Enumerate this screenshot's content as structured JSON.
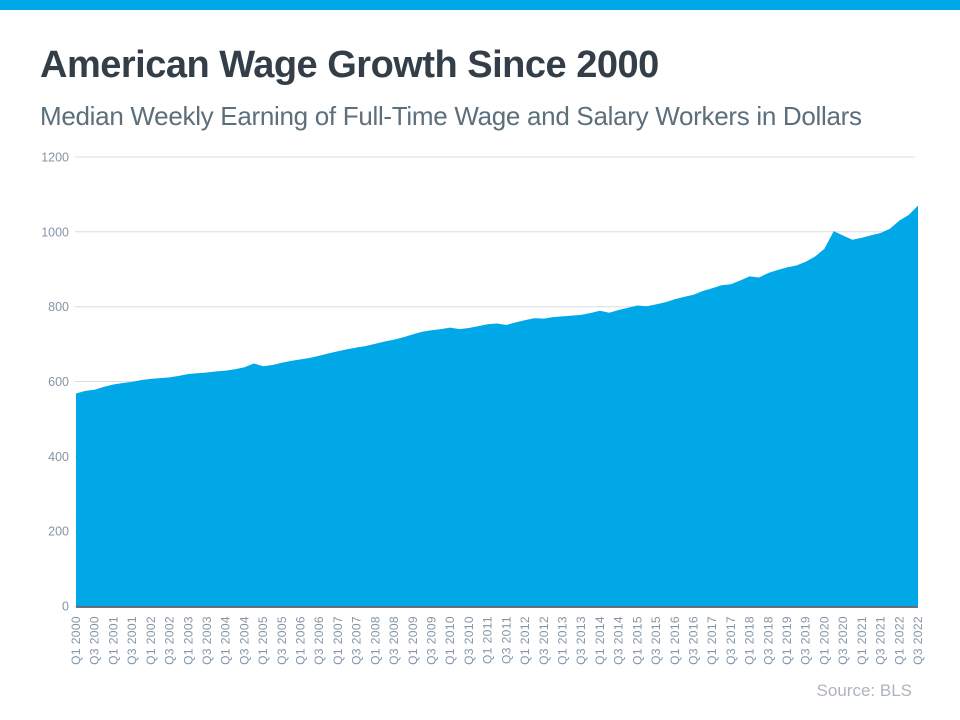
{
  "colors": {
    "accent": "#00A8E8",
    "title": "#333E48",
    "subtitle": "#5C6F7B",
    "grid": "#DADEE1",
    "axis": "#3A444E",
    "tick": "#8495A6",
    "source": "#AEB5BC"
  },
  "header": {
    "title": "American Wage Growth Since 2000",
    "subtitle": "Median Weekly Earning of Full-Time Wage and Salary Workers in Dollars"
  },
  "footer": {
    "source": "Source: BLS"
  },
  "chart_data": {
    "type": "area",
    "title": "American Wage Growth Since 2000",
    "series_name": "Median weekly earnings of full-time wage and salary workers ($)",
    "xlabel": "",
    "ylabel": "",
    "ylim": [
      0,
      1200
    ],
    "yticks": [
      0,
      200,
      400,
      600,
      800,
      1000,
      1200
    ],
    "grid": "horizontal",
    "legend": "none",
    "x_tick_every": 2,
    "categories": [
      "Q1 2000",
      "Q2 2000",
      "Q3 2000",
      "Q4 2000",
      "Q1 2001",
      "Q2 2001",
      "Q3 2001",
      "Q4 2001",
      "Q1 2002",
      "Q2 2002",
      "Q3 2002",
      "Q4 2002",
      "Q1 2003",
      "Q2 2003",
      "Q3 2003",
      "Q4 2003",
      "Q1 2004",
      "Q2 2004",
      "Q3 2004",
      "Q4 2004",
      "Q1 2005",
      "Q2 2005",
      "Q3 2005",
      "Q4 2005",
      "Q1 2006",
      "Q2 2006",
      "Q3 2006",
      "Q4 2006",
      "Q1 2007",
      "Q2 2007",
      "Q3 2007",
      "Q4 2007",
      "Q1 2008",
      "Q2 2008",
      "Q3 2008",
      "Q4 2008",
      "Q1 2009",
      "Q2 2009",
      "Q3 2009",
      "Q4 2009",
      "Q1 2010",
      "Q2 2010",
      "Q3 2010",
      "Q4 2010",
      "Q1 2011",
      "Q2 2011",
      "Q3 2011",
      "Q4 2011",
      "Q1 2012",
      "Q2 2012",
      "Q3 2012",
      "Q4 2012",
      "Q1 2013",
      "Q2 2013",
      "Q3 2013",
      "Q4 2013",
      "Q1 2014",
      "Q2 2014",
      "Q3 2014",
      "Q4 2014",
      "Q1 2015",
      "Q2 2015",
      "Q3 2015",
      "Q4 2015",
      "Q1 2016",
      "Q2 2016",
      "Q3 2016",
      "Q4 2016",
      "Q1 2017",
      "Q2 2017",
      "Q3 2017",
      "Q4 2017",
      "Q1 2018",
      "Q2 2018",
      "Q3 2018",
      "Q4 2018",
      "Q1 2019",
      "Q2 2019",
      "Q3 2019",
      "Q4 2019",
      "Q1 2020",
      "Q2 2020",
      "Q3 2020",
      "Q4 2020",
      "Q1 2021",
      "Q2 2021",
      "Q3 2021",
      "Q4 2021",
      "Q1 2022",
      "Q2 2022",
      "Q3 2022"
    ],
    "values": [
      568,
      575,
      578,
      586,
      592,
      596,
      599,
      604,
      607,
      609,
      611,
      615,
      620,
      622,
      624,
      627,
      629,
      633,
      638,
      648,
      641,
      644,
      650,
      655,
      659,
      663,
      669,
      675,
      681,
      686,
      691,
      695,
      701,
      707,
      712,
      718,
      726,
      733,
      737,
      740,
      744,
      740,
      743,
      748,
      753,
      755,
      751,
      758,
      764,
      769,
      768,
      772,
      774,
      776,
      778,
      783,
      789,
      784,
      791,
      797,
      803,
      801,
      806,
      812,
      820,
      826,
      832,
      842,
      849,
      857,
      860,
      870,
      881,
      878,
      890,
      898,
      905,
      910,
      920,
      934,
      955,
      1002,
      990,
      979,
      984,
      991,
      997,
      1008,
      1030,
      1045,
      1070
    ]
  }
}
